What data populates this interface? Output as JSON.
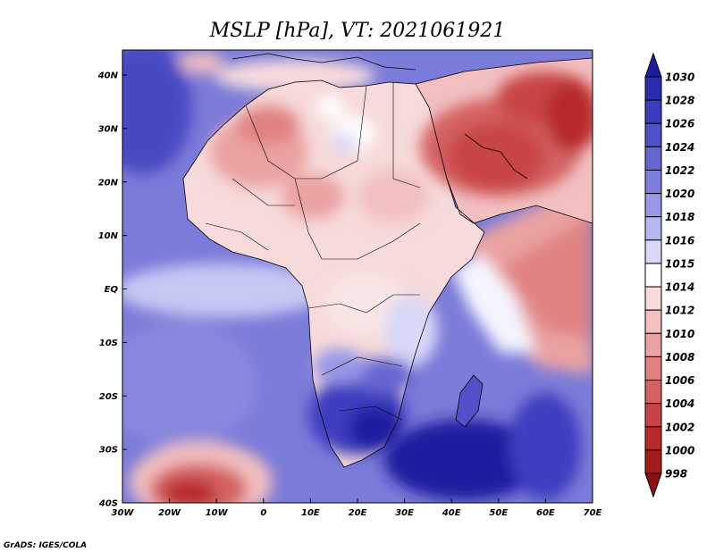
{
  "title": "MSLP [hPa], VT: 2021061921",
  "credit": "GrADS: IGES/COLA",
  "x_tick_labels": [
    "30W",
    "20W",
    "10W",
    "0",
    "10E",
    "20E",
    "30E",
    "40E",
    "50E",
    "60E",
    "70E"
  ],
  "y_tick_labels": [
    "40N",
    "30N",
    "20N",
    "10N",
    "EQ",
    "10S",
    "20S",
    "30S",
    "40S"
  ],
  "colorbar": {
    "labels": [
      "1030",
      "1028",
      "1026",
      "1024",
      "1022",
      "1020",
      "1018",
      "1016",
      "1015",
      "1014",
      "1012",
      "1010",
      "1008",
      "1006",
      "1004",
      "1002",
      "1000",
      "998"
    ],
    "colors": [
      "#1c1c9e",
      "#2b2bb0",
      "#3c3cbf",
      "#5050c8",
      "#6666d2",
      "#7d7ddc",
      "#9898e6",
      "#b6b6f0",
      "#d8d8f8",
      "#ffffff",
      "#f8dcdc",
      "#f2c0c0",
      "#eaa2a2",
      "#e08282",
      "#d46262",
      "#c84444",
      "#b82a2a",
      "#a51a1a",
      "#8f1010"
    ]
  },
  "colors": {
    "ocean_base": "#7b7bd9",
    "land_neutral": "#f7dada"
  }
}
